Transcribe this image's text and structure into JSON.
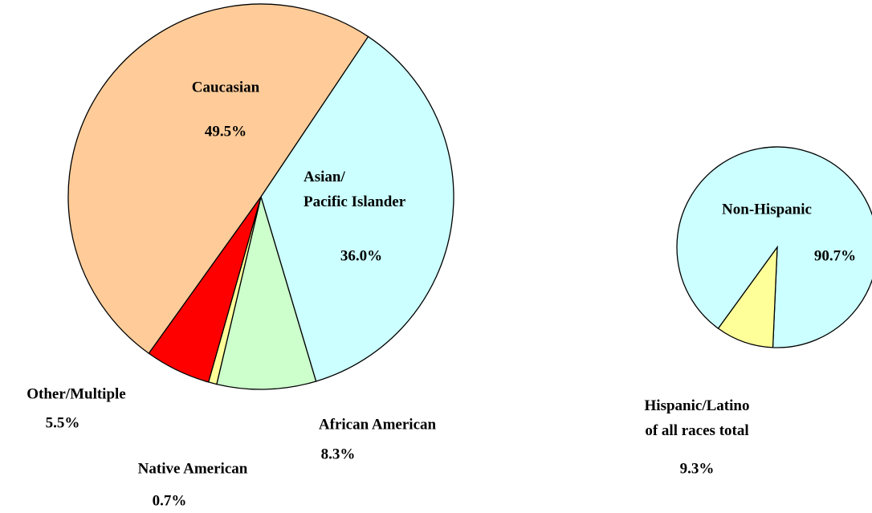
{
  "chart_data": [
    {
      "type": "pie",
      "categories": [
        "Caucasian",
        "Asian/\nPacific Islander",
        "African American",
        "Native American",
        "Other/Multiple"
      ],
      "values": [
        49.5,
        36.0,
        8.3,
        0.7,
        5.5
      ],
      "value_labels": [
        "49.5%",
        "36.0%",
        "8.3%",
        "0.7%",
        "5.5%"
      ],
      "colors": [
        "#FFCC99",
        "#CCFFFF",
        "#CCFFCC",
        "#FFFF99",
        "#FF0000"
      ]
    },
    {
      "type": "pie",
      "categories": [
        "Non-Hispanic",
        "Hispanic/Latino\nof all races total"
      ],
      "values": [
        90.7,
        9.3
      ],
      "value_labels": [
        "90.7%",
        "9.3%"
      ],
      "colors": [
        "#CCFFFF",
        "#FFFF99"
      ]
    }
  ]
}
